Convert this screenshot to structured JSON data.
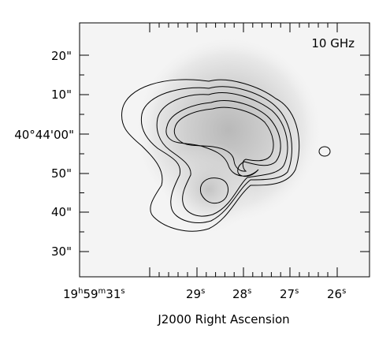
{
  "chart_data": {
    "type": "heatmap",
    "title": "",
    "panel_label": "10 GHz",
    "xlabel": "J2000 Right Ascension",
    "ylabel": "",
    "ra_ticks": [
      {
        "h": "19",
        "m": "59",
        "s": "31",
        "label_full": true
      },
      {
        "s": "29"
      },
      {
        "s": "28"
      },
      {
        "s": "27"
      },
      {
        "s": "26"
      }
    ],
    "dec_ticks": [
      {
        "label": "20\""
      },
      {
        "label": "10\""
      },
      {
        "label": "40°44'00\""
      },
      {
        "label": "50\""
      },
      {
        "label": "40\""
      },
      {
        "label": "30\""
      }
    ],
    "image": {
      "colormap": "greyscale",
      "background": "#f4f4f4",
      "peak_color": "#b6b6b6"
    },
    "contours": {
      "count": 5,
      "line_color": "#000000"
    },
    "grid": false
  }
}
